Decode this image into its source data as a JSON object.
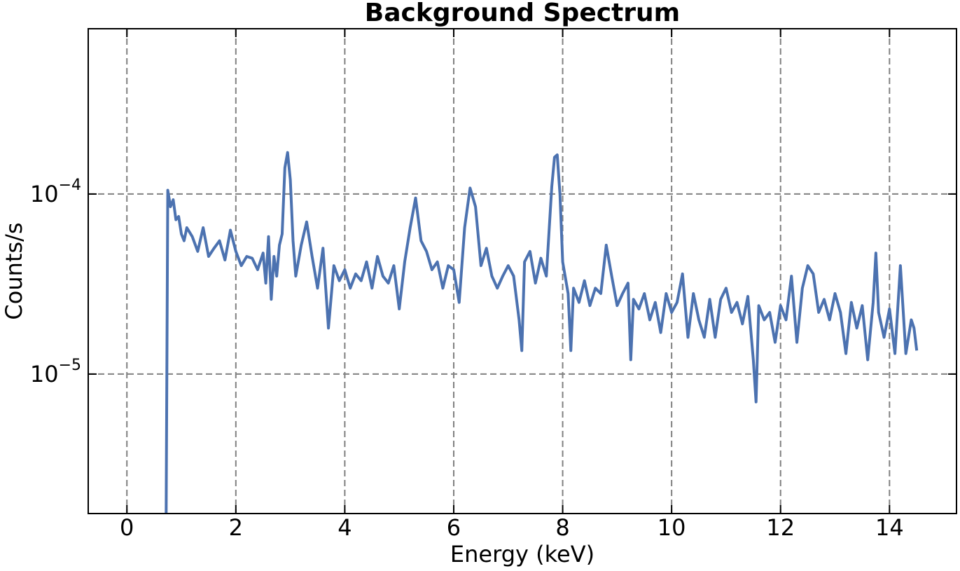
{
  "chart_data": {
    "type": "line",
    "title": "Background Spectrum",
    "xlabel": "Energy (keV)",
    "ylabel": "Counts/s",
    "yscale": "log",
    "grid": true,
    "xlim": [
      -0.71,
      15.23
    ],
    "ylim": [
      1.68e-06,
      0.000828
    ],
    "xticks": [
      0,
      2,
      4,
      6,
      8,
      10,
      12,
      14
    ],
    "yticks": [
      {
        "value": 1e-05,
        "label": "10",
        "exponent": "−5"
      },
      {
        "value": 0.0001,
        "label": "10",
        "exponent": "−4"
      }
    ],
    "x": [
      0.72,
      0.75,
      0.8,
      0.85,
      0.9,
      0.95,
      1.0,
      1.05,
      1.1,
      1.2,
      1.3,
      1.4,
      1.5,
      1.6,
      1.7,
      1.8,
      1.9,
      2.0,
      2.1,
      2.2,
      2.3,
      2.4,
      2.5,
      2.55,
      2.6,
      2.65,
      2.7,
      2.75,
      2.8,
      2.85,
      2.9,
      2.95,
      3.0,
      3.05,
      3.1,
      3.2,
      3.3,
      3.4,
      3.5,
      3.6,
      3.7,
      3.8,
      3.9,
      4.0,
      4.1,
      4.2,
      4.3,
      4.4,
      4.5,
      4.6,
      4.7,
      4.8,
      4.9,
      5.0,
      5.1,
      5.2,
      5.3,
      5.4,
      5.5,
      5.6,
      5.7,
      5.8,
      5.9,
      6.0,
      6.1,
      6.2,
      6.3,
      6.4,
      6.5,
      6.6,
      6.7,
      6.8,
      6.9,
      7.0,
      7.1,
      7.2,
      7.25,
      7.3,
      7.4,
      7.5,
      7.6,
      7.7,
      7.8,
      7.85,
      7.9,
      7.95,
      8.0,
      8.1,
      8.15,
      8.2,
      8.3,
      8.4,
      8.5,
      8.6,
      8.7,
      8.8,
      8.9,
      9.0,
      9.1,
      9.2,
      9.25,
      9.3,
      9.4,
      9.5,
      9.6,
      9.7,
      9.8,
      9.9,
      10.0,
      10.1,
      10.2,
      10.3,
      10.4,
      10.5,
      10.6,
      10.7,
      10.8,
      10.9,
      11.0,
      11.1,
      11.2,
      11.3,
      11.4,
      11.5,
      11.55,
      11.6,
      11.7,
      11.8,
      11.9,
      12.0,
      12.1,
      12.2,
      12.3,
      12.4,
      12.5,
      12.6,
      12.7,
      12.8,
      12.9,
      13.0,
      13.1,
      13.2,
      13.3,
      13.4,
      13.5,
      13.6,
      13.7,
      13.75,
      13.8,
      13.9,
      14.0,
      14.1,
      14.2,
      14.3,
      14.4,
      14.45,
      14.5
    ],
    "series": [
      {
        "color": "#4c72b0",
        "values": [
          1.5e-06,
          0.000105,
          8.5e-05,
          9.3e-05,
          7.2e-05,
          7.5e-05,
          6e-05,
          5.5e-05,
          6.5e-05,
          5.8e-05,
          4.8e-05,
          6.5e-05,
          4.5e-05,
          5e-05,
          5.5e-05,
          4.3e-05,
          6.3e-05,
          4.8e-05,
          4e-05,
          4.5e-05,
          4.4e-05,
          3.8e-05,
          4.7e-05,
          3.2e-05,
          5.8e-05,
          2.6e-05,
          4.5e-05,
          3.5e-05,
          5.2e-05,
          6e-05,
          0.00014,
          0.00017,
          0.00012,
          5.5e-05,
          3.5e-05,
          5.2e-05,
          7e-05,
          4.5e-05,
          3e-05,
          5e-05,
          1.8e-05,
          4e-05,
          3.3e-05,
          3.8e-05,
          3e-05,
          3.6e-05,
          3.3e-05,
          4.2e-05,
          3e-05,
          4.5e-05,
          3.5e-05,
          3.2e-05,
          4e-05,
          2.3e-05,
          4.2e-05,
          6.5e-05,
          9.5e-05,
          5.5e-05,
          4.8e-05,
          3.8e-05,
          4.2e-05,
          3e-05,
          4e-05,
          3.8e-05,
          2.5e-05,
          6.5e-05,
          0.000108,
          8.5e-05,
          4e-05,
          5e-05,
          3.5e-05,
          3e-05,
          3.5e-05,
          4e-05,
          3.5e-05,
          2e-05,
          1.35e-05,
          4.2e-05,
          4.8e-05,
          3.2e-05,
          4.4e-05,
          3.5e-05,
          0.00011,
          0.00016,
          0.000165,
          0.0001,
          4.2e-05,
          2.8e-05,
          1.35e-05,
          3e-05,
          2.5e-05,
          3.3e-05,
          2.4e-05,
          3e-05,
          2.8e-05,
          5.2e-05,
          3.5e-05,
          2.4e-05,
          2.8e-05,
          3.2e-05,
          1.2e-05,
          2.6e-05,
          2.3e-05,
          2.8e-05,
          2e-05,
          2.5e-05,
          1.7e-05,
          2.8e-05,
          2.2e-05,
          2.5e-05,
          3.6e-05,
          1.6e-05,
          2.8e-05,
          2e-05,
          1.6e-05,
          2.6e-05,
          1.6e-05,
          2.6e-05,
          3e-05,
          2.2e-05,
          2.5e-05,
          1.9e-05,
          2.7e-05,
          1.2e-05,
          7e-06,
          2.4e-05,
          2e-05,
          2.2e-05,
          1.5e-05,
          2.4e-05,
          2e-05,
          3.5e-05,
          1.5e-05,
          3e-05,
          4e-05,
          3.6e-05,
          2.2e-05,
          2.6e-05,
          2e-05,
          2.8e-05,
          2.2e-05,
          1.3e-05,
          2.5e-05,
          1.8e-05,
          2.4e-05,
          1.2e-05,
          2.5e-05,
          4.7e-05,
          2.2e-05,
          1.6e-05,
          2.3e-05,
          1.3e-05,
          4e-05,
          1.3e-05,
          2e-05,
          1.8e-05,
          1.35e-05
        ]
      }
    ]
  }
}
